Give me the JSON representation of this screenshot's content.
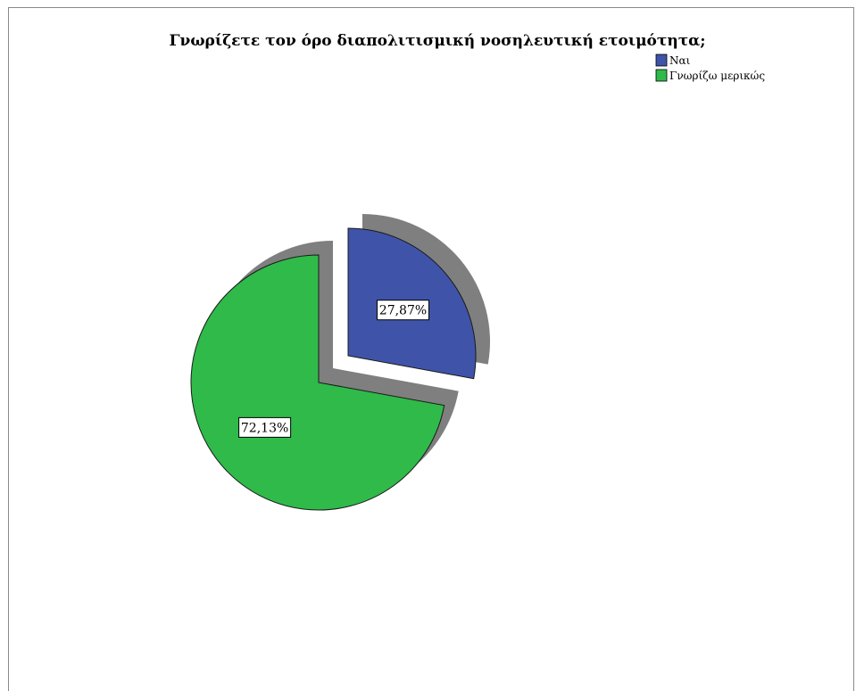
{
  "chart_data": {
    "type": "pie",
    "title": "Γνωρίζετε τον όρο διαπολιτισμική νοσηλευτική ετοιμότητα;",
    "categories": [
      "Ναι",
      "Γνωρίζω μερικώς"
    ],
    "values": [
      27.87,
      72.13
    ],
    "data_labels": [
      "27,87%",
      "72,13%"
    ],
    "colors": [
      "#3f54a8",
      "#2fba4a"
    ],
    "exploded": true,
    "shadow": true,
    "legend": {
      "position": "top-right",
      "entries": [
        "Ναι",
        "Γνωρίζω μερικώς"
      ]
    }
  }
}
